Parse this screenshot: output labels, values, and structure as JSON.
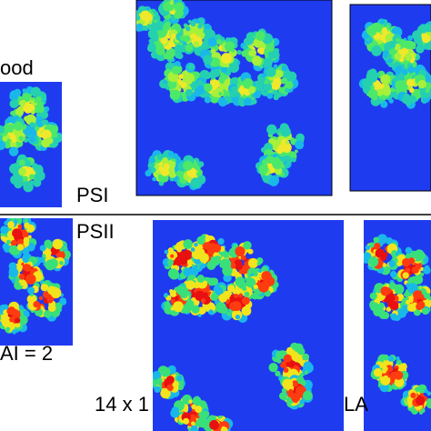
{
  "labels": {
    "top_left": "ood",
    "psi": "PSI",
    "psii": "PSII",
    "lai": "AI = 2",
    "size": "14 x 1",
    "lai_right": "LA"
  }
}
